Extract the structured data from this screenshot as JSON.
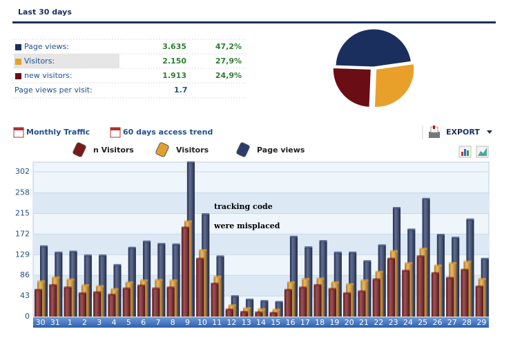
{
  "header": {
    "title": "Last 30 days"
  },
  "stats": {
    "rows": [
      {
        "label": "Page views:",
        "value": "3.635",
        "share": {
          "value": 47.2,
          "label": "47,2%"
        },
        "color": "#1b2f5e"
      },
      {
        "label": "Visitors:",
        "value": "2.150",
        "share": {
          "value": 27.9,
          "label": "27,9%"
        },
        "color": "#e8a02a"
      },
      {
        "label": "new visitors:",
        "value": "1.913",
        "share": {
          "value": 24.9,
          "label": "24,9%"
        },
        "color": "#6b0d14"
      }
    ],
    "per_visit": {
      "label": "Page views per visit:",
      "value": "1.7"
    }
  },
  "toolbar": {
    "links": [
      "Monthly Traffic",
      "60 days access trend"
    ],
    "export": "EXPORT"
  },
  "chart_data": {
    "type": "bar",
    "categories": [
      "30",
      "31",
      "1",
      "2",
      "3",
      "4",
      "5",
      "6",
      "7",
      "8",
      "9",
      "10",
      "11",
      "12",
      "13",
      "14",
      "15",
      "16",
      "17",
      "18",
      "19",
      "20",
      "21",
      "22",
      "23",
      "24",
      "25",
      "26",
      "27",
      "28",
      "29"
    ],
    "series": [
      {
        "name": "n Visitors",
        "color": "#7a1a1e",
        "values": [
          55,
          65,
          60,
          48,
          50,
          45,
          58,
          64,
          58,
          60,
          185,
          120,
          68,
          14,
          9,
          8,
          7,
          55,
          60,
          65,
          57,
          48,
          52,
          77,
          120,
          95,
          125,
          90,
          80,
          97,
          62
        ]
      },
      {
        "name": "Visitors",
        "color": "#e3a032",
        "values": [
          70,
          78,
          74,
          62,
          60,
          54,
          68,
          72,
          73,
          72,
          195,
          135,
          80,
          20,
          14,
          12,
          11,
          68,
          75,
          76,
          68,
          64,
          72,
          90,
          133,
          108,
          138,
          103,
          108,
          111,
          75
        ]
      },
      {
        "name": "Page views",
        "color": "#2c3d6b",
        "values": [
          140,
          127,
          129,
          121,
          121,
          101,
          137,
          150,
          145,
          144,
          315,
          207,
          119,
          36,
          29,
          26,
          24,
          160,
          138,
          151,
          127,
          127,
          109,
          142,
          220,
          175,
          239,
          164,
          158,
          196,
          114
        ]
      }
    ],
    "ylim": [
      0,
      302
    ],
    "yticks": [
      0,
      43,
      86,
      129,
      172,
      215,
      258,
      302
    ],
    "annotation": [
      "tracking code",
      "were misplaced"
    ]
  }
}
